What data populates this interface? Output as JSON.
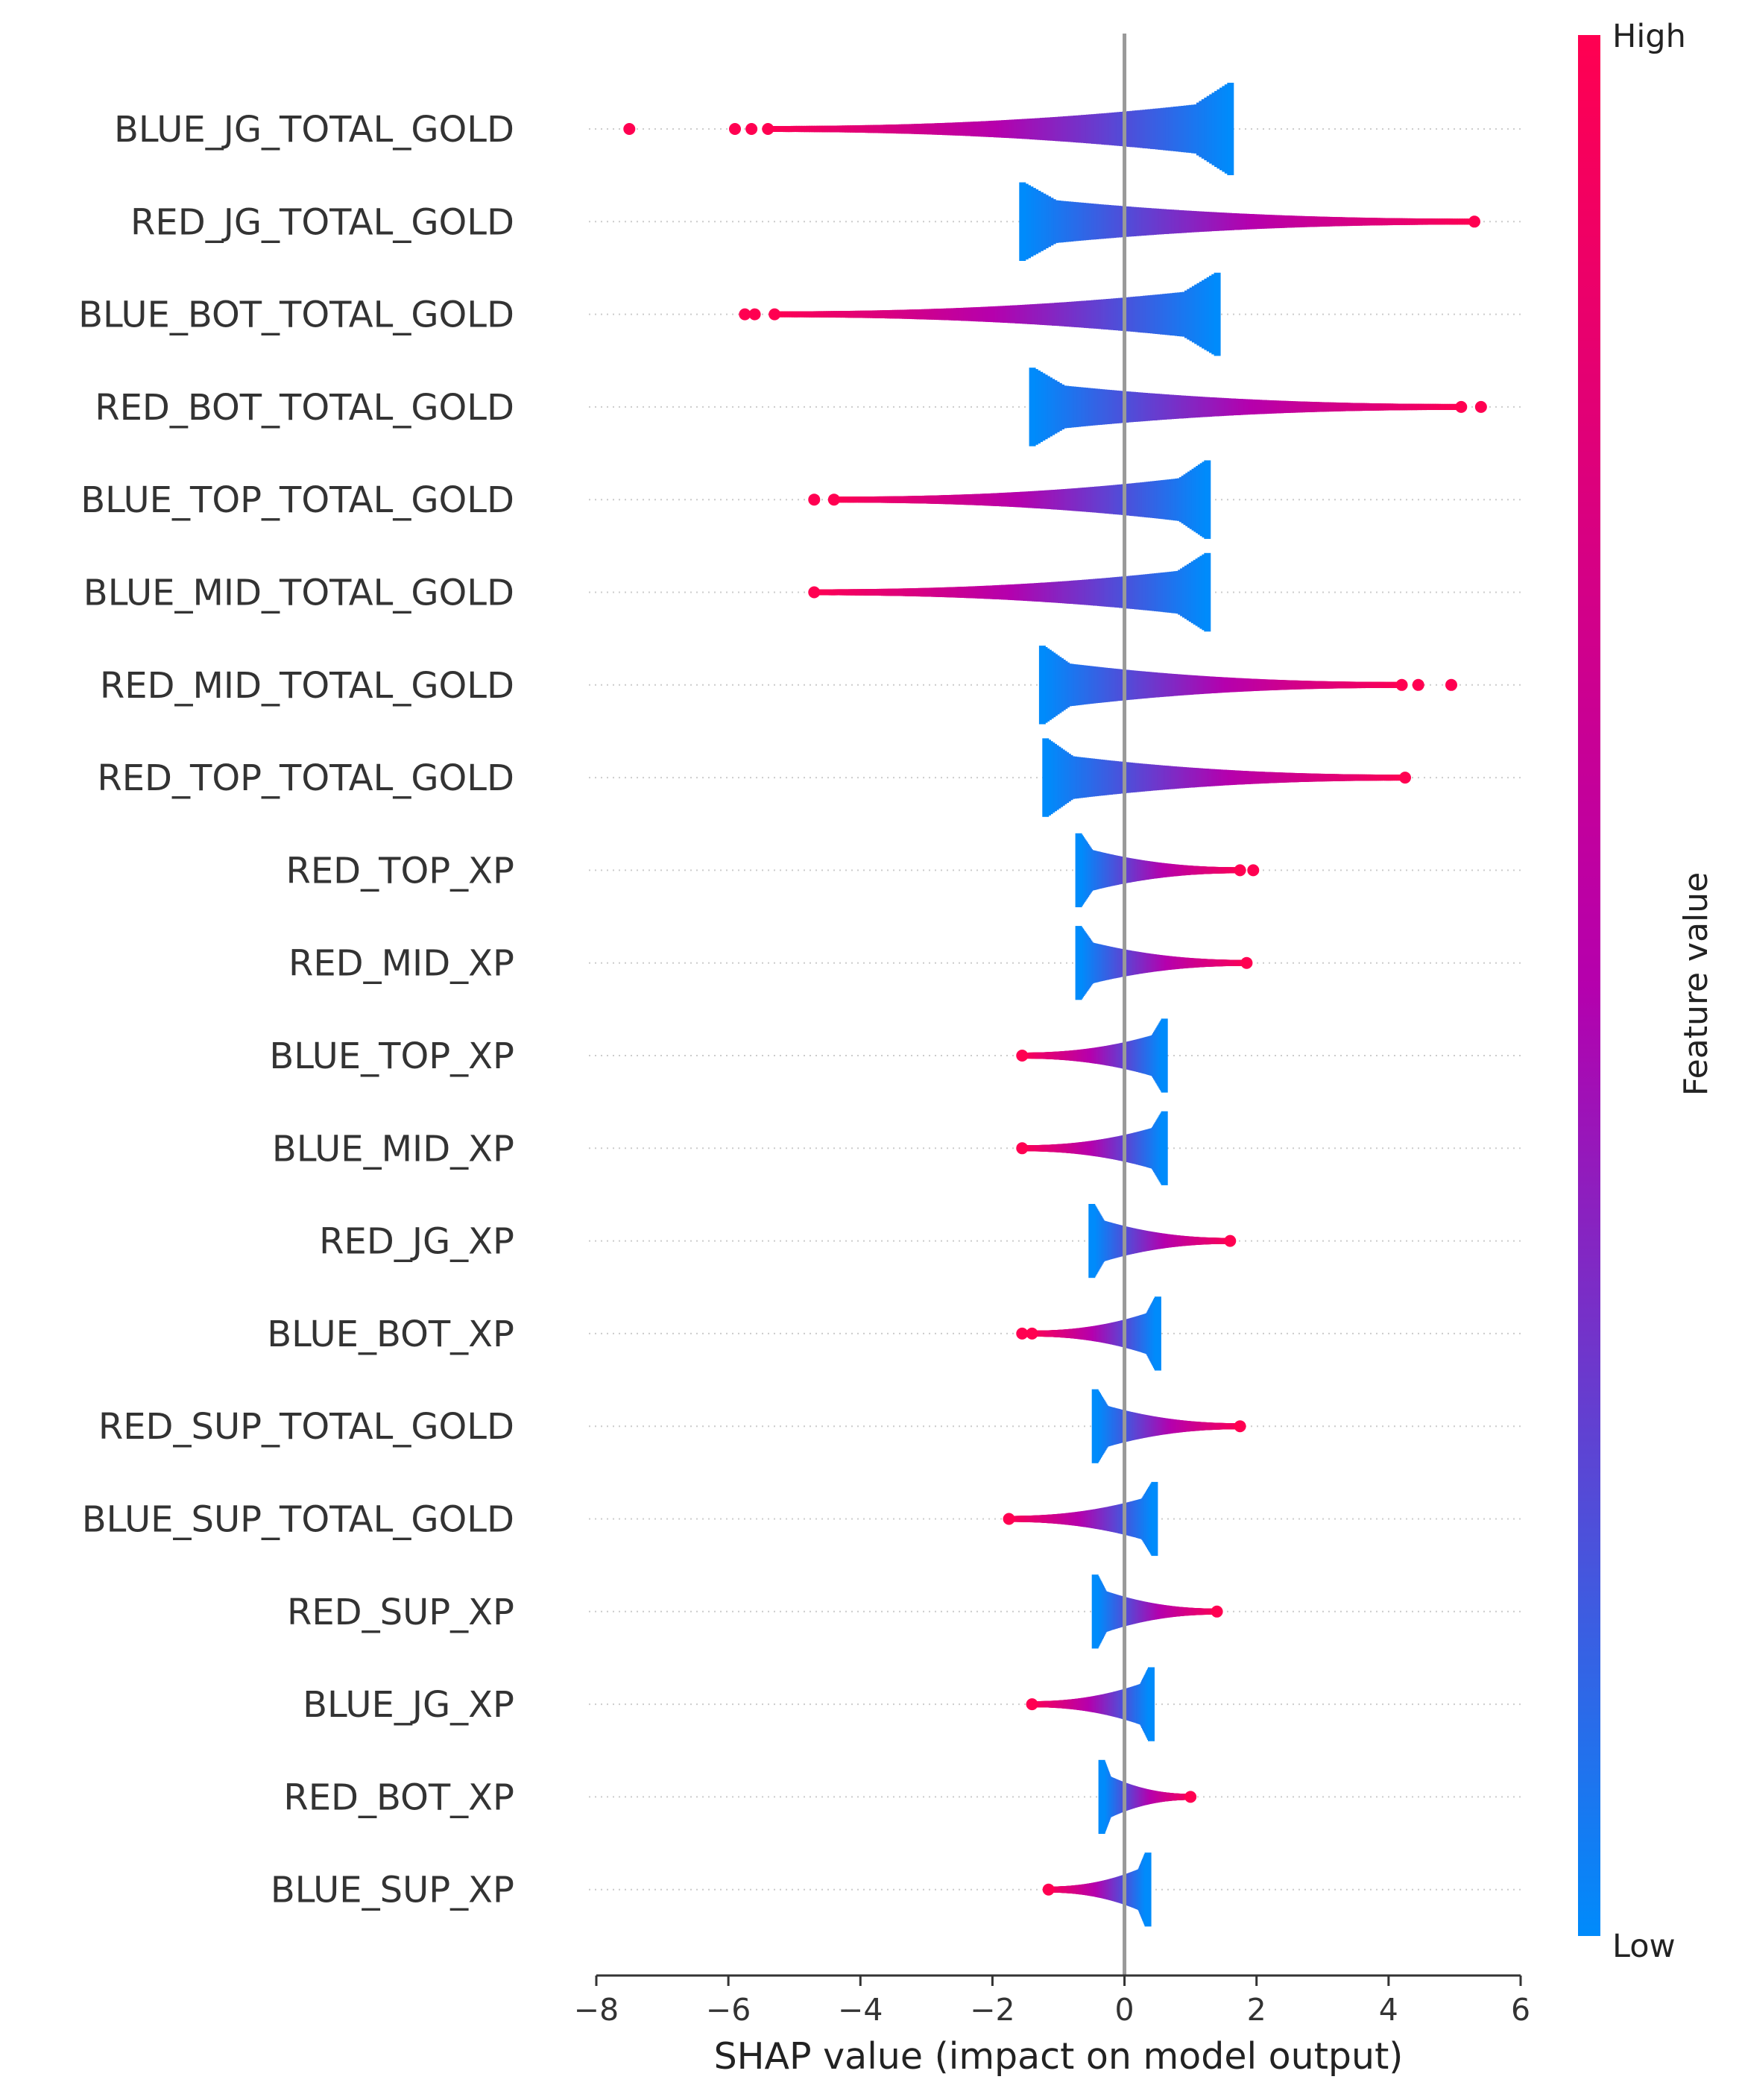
{
  "chart_data": {
    "type": "scatter",
    "subtype": "shap-beeswarm-summary",
    "xlabel": "SHAP value (impact on model output)",
    "xlim": [
      -8.2,
      6.0
    ],
    "xticks": [
      -8,
      -6,
      -4,
      -2,
      0,
      2,
      4,
      6
    ],
    "xtick_labels": [
      "−8",
      "−6",
      "−4",
      "−2",
      "0",
      "2",
      "4",
      "6"
    ],
    "zero_line": true,
    "colorbar": {
      "title": "Feature value",
      "high_label": "High",
      "low_label": "Low",
      "low_color": "#008bfb",
      "mid_color": "#b500ad",
      "high_color": "#ff0051"
    },
    "features": [
      {
        "name": "BLUE_JG_TOTAL_GOLD",
        "direction": "negative",
        "min": -5.4,
        "max": 1.6,
        "height": 1.0,
        "outliers": [
          -7.5,
          -5.9,
          -5.65
        ]
      },
      {
        "name": "RED_JG_TOTAL_GOLD",
        "direction": "positive",
        "min": -1.55,
        "max": 5.3,
        "height": 0.85,
        "outliers": []
      },
      {
        "name": "BLUE_BOT_TOTAL_GOLD",
        "direction": "negative",
        "min": -5.3,
        "max": 1.4,
        "height": 0.9,
        "outliers": [
          -5.75,
          -5.6
        ]
      },
      {
        "name": "RED_BOT_TOTAL_GOLD",
        "direction": "positive",
        "min": -1.4,
        "max": 5.1,
        "height": 0.85,
        "outliers": [
          5.4
        ]
      },
      {
        "name": "BLUE_TOP_TOTAL_GOLD",
        "direction": "negative",
        "min": -4.4,
        "max": 1.25,
        "height": 0.85,
        "outliers": [
          -4.7
        ]
      },
      {
        "name": "BLUE_MID_TOTAL_GOLD",
        "direction": "negative",
        "min": -4.7,
        "max": 1.25,
        "height": 0.85,
        "outliers": []
      },
      {
        "name": "RED_MID_TOTAL_GOLD",
        "direction": "positive",
        "min": -1.25,
        "max": 4.2,
        "height": 0.85,
        "outliers": [
          4.45,
          4.95
        ]
      },
      {
        "name": "RED_TOP_TOTAL_GOLD",
        "direction": "positive",
        "min": -1.2,
        "max": 4.25,
        "height": 0.85,
        "outliers": []
      },
      {
        "name": "RED_TOP_XP",
        "direction": "positive",
        "min": -0.7,
        "max": 1.75,
        "height": 0.8,
        "outliers": [
          1.95
        ]
      },
      {
        "name": "RED_MID_XP",
        "direction": "positive",
        "min": -0.7,
        "max": 1.85,
        "height": 0.8,
        "outliers": []
      },
      {
        "name": "BLUE_TOP_XP",
        "direction": "negative",
        "min": -1.55,
        "max": 0.6,
        "height": 0.8,
        "outliers": []
      },
      {
        "name": "BLUE_MID_XP",
        "direction": "negative",
        "min": -1.55,
        "max": 0.6,
        "height": 0.8,
        "outliers": []
      },
      {
        "name": "RED_JG_XP",
        "direction": "positive",
        "min": -0.5,
        "max": 1.6,
        "height": 0.8,
        "outliers": []
      },
      {
        "name": "BLUE_BOT_XP",
        "direction": "negative",
        "min": -1.4,
        "max": 0.5,
        "height": 0.8,
        "outliers": [
          -1.55
        ]
      },
      {
        "name": "RED_SUP_TOTAL_GOLD",
        "direction": "positive",
        "min": -0.45,
        "max": 1.75,
        "height": 0.8,
        "outliers": []
      },
      {
        "name": "BLUE_SUP_TOTAL_GOLD",
        "direction": "negative",
        "min": -1.75,
        "max": 0.45,
        "height": 0.8,
        "outliers": []
      },
      {
        "name": "RED_SUP_XP",
        "direction": "positive",
        "min": -0.45,
        "max": 1.4,
        "height": 0.8,
        "outliers": []
      },
      {
        "name": "BLUE_JG_XP",
        "direction": "negative",
        "min": -1.4,
        "max": 0.4,
        "height": 0.8,
        "outliers": []
      },
      {
        "name": "RED_BOT_XP",
        "direction": "positive",
        "min": -0.35,
        "max": 1.0,
        "height": 0.8,
        "outliers": []
      },
      {
        "name": "BLUE_SUP_XP",
        "direction": "negative",
        "min": -1.15,
        "max": 0.35,
        "height": 0.8,
        "outliers": []
      }
    ]
  }
}
